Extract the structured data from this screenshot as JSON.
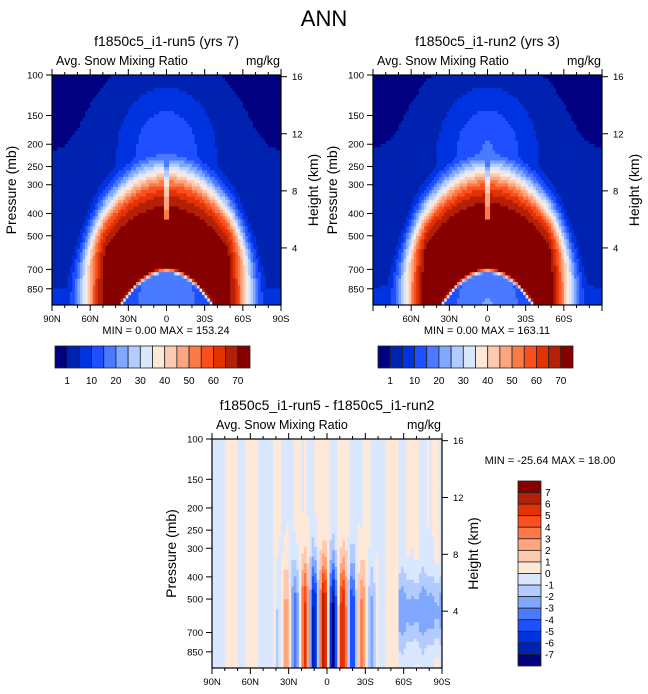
{
  "page_title": "ANN",
  "chart_data": [
    {
      "id": "panel1",
      "type": "contour",
      "title": "f1850c5_i1-run5 (yrs 7)",
      "left_subtitle": "Avg. Snow Mixing Ratio",
      "right_subtitle": "mg/kg",
      "ylabel": "Pressure (mb)",
      "ylabel_right": "Height (km)",
      "x_tick_labels": [
        "90N",
        "60N",
        "30N",
        "0",
        "30S",
        "60S",
        "90S"
      ],
      "x_ticks": [
        90,
        60,
        30,
        0,
        -30,
        -60,
        -90
      ],
      "y_ticks": [
        100,
        150,
        200,
        250,
        300,
        400,
        500,
        700,
        850
      ],
      "ylim": [
        100,
        1000
      ],
      "y_right_ticks": [
        16,
        12,
        8,
        4
      ],
      "min_max_label": "MIN =   0.00  MAX = 153.24",
      "min": 0.0,
      "max": 153.24,
      "colorbar": {
        "orientation": "horizontal",
        "levels_labels": [
          "1",
          "10",
          "20",
          "30",
          "40",
          "50",
          "60",
          "70"
        ]
      }
    },
    {
      "id": "panel2",
      "type": "contour",
      "title": "f1850c5_i1-run2 (yrs 3)",
      "left_subtitle": "Avg. Snow Mixing Ratio",
      "right_subtitle": "mg/kg",
      "ylabel": "Pressure (mb)",
      "ylabel_right": "Height (km)",
      "x_tick_labels": [
        "60N",
        "30N",
        "0",
        "30S",
        "60S"
      ],
      "x_ticks": [
        60,
        30,
        0,
        -30,
        -60
      ],
      "y_ticks": [
        100,
        150,
        200,
        250,
        300,
        400,
        500,
        700,
        850
      ],
      "ylim": [
        100,
        1000
      ],
      "y_right_ticks": [
        16,
        12,
        8,
        4
      ],
      "min_max_label": "MIN =   0.00  MAX = 163.11",
      "min": 0.0,
      "max": 163.11,
      "colorbar": {
        "orientation": "horizontal",
        "levels_labels": [
          "1",
          "10",
          "20",
          "30",
          "40",
          "50",
          "60",
          "70"
        ]
      }
    },
    {
      "id": "panel3",
      "type": "contour",
      "title": "f1850c5_i1-run5 - f1850c5_i1-run2",
      "left_subtitle": "Avg. Snow Mixing Ratio",
      "right_subtitle": "mg/kg",
      "ylabel": "Pressure (mb)",
      "ylabel_right": "Height (km)",
      "x_tick_labels": [
        "90N",
        "60N",
        "30N",
        "0",
        "30S",
        "60S",
        "90S"
      ],
      "x_ticks": [
        90,
        60,
        30,
        0,
        -30,
        -60,
        -90
      ],
      "y_ticks": [
        100,
        150,
        200,
        250,
        300,
        400,
        500,
        700,
        850
      ],
      "ylim": [
        100,
        1000
      ],
      "y_right_ticks": [
        16,
        12,
        8,
        4
      ],
      "min_max_label": "MIN = -25.64  MAX =  18.00",
      "min": -25.64,
      "max": 18.0,
      "colorbar": {
        "orientation": "vertical",
        "levels_labels": [
          "7",
          "6",
          "5",
          "4",
          "3",
          "2",
          "1",
          "0",
          "-1",
          "-2",
          "-3",
          "-4",
          "-5",
          "-6",
          "-7"
        ]
      }
    }
  ],
  "colormaps": {
    "abs": [
      "#000080",
      "#0022b0",
      "#0033e0",
      "#1f4fff",
      "#4a7aff",
      "#80a8ff",
      "#b3ccff",
      "#d9e8ff",
      "#fee8d8",
      "#fdc9b0",
      "#fca57f",
      "#fb7a47",
      "#fb4f1f",
      "#e33204",
      "#b42007",
      "#870000"
    ],
    "diff": [
      "#000080",
      "#0022b0",
      "#0033e0",
      "#1f4fff",
      "#4a7aff",
      "#80a8ff",
      "#b3ccff",
      "#d9e8ff",
      "#fee8d8",
      "#fdc9b0",
      "#fca57f",
      "#fb7a47",
      "#fb4f1f",
      "#e33204",
      "#b42007",
      "#870000"
    ]
  }
}
